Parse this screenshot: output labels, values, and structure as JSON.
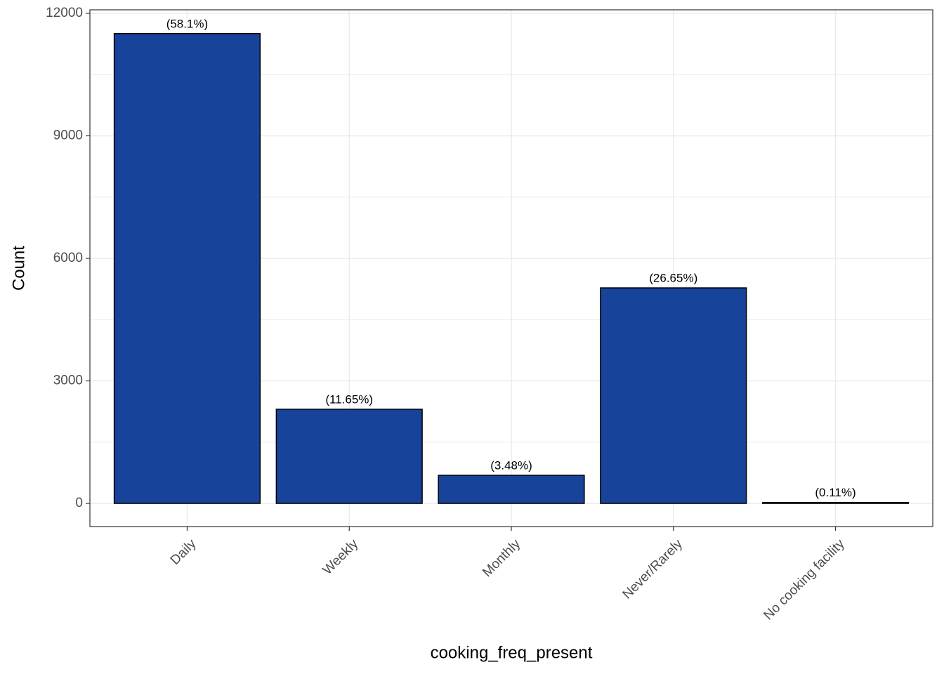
{
  "chart_data": {
    "type": "bar",
    "x_label": "cooking_freq_present",
    "y_label": "Count",
    "categories": [
      "Daily",
      "Weekly",
      "Monthly",
      "Never/Rarely",
      "No cooking facility"
    ],
    "values": [
      11504,
      2307,
      689,
      5277,
      22
    ],
    "percent_labels": [
      "(58.1%)",
      "(11.65%)",
      "(3.48%)",
      "(26.65%)",
      "(0.11%)"
    ],
    "color": "#17439a",
    "ylim": [
      -567,
      12085
    ],
    "yticks": [
      0,
      3000,
      6000,
      9000,
      12000
    ],
    "grid": true
  }
}
